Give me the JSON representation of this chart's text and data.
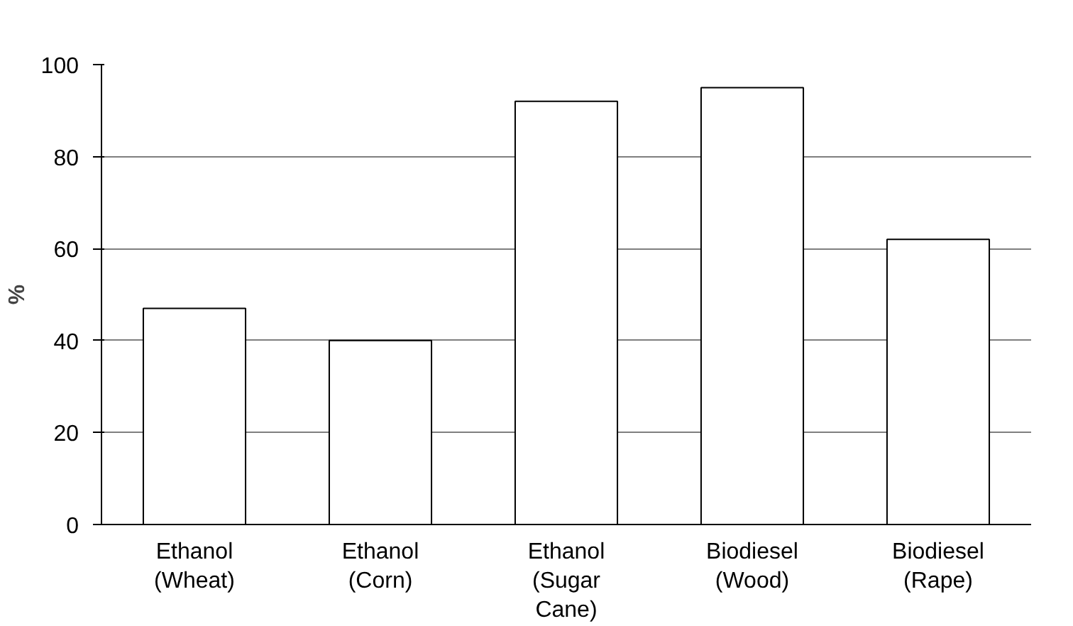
{
  "chart_data": {
    "type": "bar",
    "ylabel": "%",
    "categories": [
      "Ethanol\n(Wheat)",
      "Ethanol\n(Corn)",
      "Ethanol\n(Sugar\nCane)",
      "Biodiesel\n(Wood)",
      "Biodiesel\n(Rape)"
    ],
    "values": [
      47,
      40,
      92,
      95,
      62
    ],
    "color": "#ffffff",
    "ylim": [
      0,
      100
    ],
    "yticks": [
      0,
      20,
      40,
      60,
      80,
      100
    ],
    "grid": "y"
  }
}
